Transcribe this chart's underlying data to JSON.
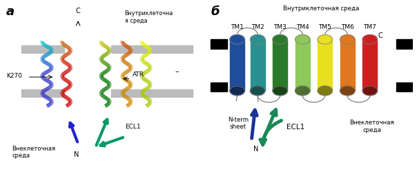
{
  "panel_a_label": "а",
  "panel_b_label": "б",
  "tm_labels": [
    "TM1",
    "TM2",
    "TM3",
    "TM4",
    "TM5",
    "TM6",
    "TM7"
  ],
  "tm_colors": [
    "#1e4d9c",
    "#2a9090",
    "#2a7a2a",
    "#8fc85a",
    "#e8e020",
    "#e07820",
    "#cc2020"
  ],
  "bg_color": "#ffffff",
  "gray_bar_color": "#bbbbbb",
  "intracellular_label": "Внутриклеточная среда",
  "extracellular_label": "Внеклеточная\nсреда",
  "a_intra_label": "Внутриклеточна\nя среда",
  "a_extra_label": "Внеклеточная\nсреда",
  "c_label": "C",
  "n_label": "N",
  "k270_label": "K270",
  "atr_label": "ATR",
  "ecl1_label_a": "ECL1",
  "ecl1_label_b": "ECL1",
  "n_term_sheet_label": "N-term\nsheet",
  "font_size_panel": 13,
  "font_size_text": 6.5
}
